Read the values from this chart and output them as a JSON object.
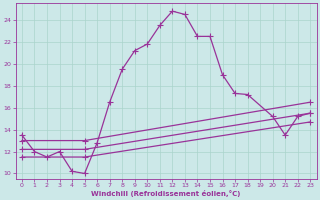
{
  "xlabel": "Windchill (Refroidissement éolien,°C)",
  "ylabel": "",
  "bg_color": "#cce8e8",
  "grid_color": "#aad4cc",
  "line_color": "#993399",
  "xlim": [
    -0.5,
    23.5
  ],
  "ylim": [
    9.5,
    25.5
  ],
  "xticks": [
    0,
    1,
    2,
    3,
    4,
    5,
    6,
    7,
    8,
    9,
    10,
    11,
    12,
    13,
    14,
    15,
    16,
    17,
    18,
    19,
    20,
    21,
    22,
    23
  ],
  "yticks": [
    10,
    12,
    14,
    16,
    18,
    20,
    22,
    24
  ],
  "series": [
    {
      "x": [
        0,
        1,
        2,
        3,
        4,
        5,
        6,
        7,
        8,
        9,
        10,
        11,
        12,
        13,
        14,
        15,
        16,
        17,
        18,
        20,
        21,
        22,
        23
      ],
      "y": [
        13.5,
        12.0,
        11.5,
        12.0,
        10.2,
        10.0,
        12.8,
        16.5,
        19.5,
        21.2,
        21.8,
        23.5,
        24.8,
        24.5,
        22.5,
        22.5,
        19.0,
        17.3,
        17.2,
        15.2,
        13.5,
        15.2,
        15.5
      ]
    },
    {
      "x": [
        0,
        5,
        23
      ],
      "y": [
        13.0,
        13.0,
        16.5
      ]
    },
    {
      "x": [
        0,
        5,
        23
      ],
      "y": [
        12.2,
        12.2,
        15.5
      ]
    },
    {
      "x": [
        0,
        5,
        23
      ],
      "y": [
        11.5,
        11.5,
        14.7
      ]
    }
  ]
}
